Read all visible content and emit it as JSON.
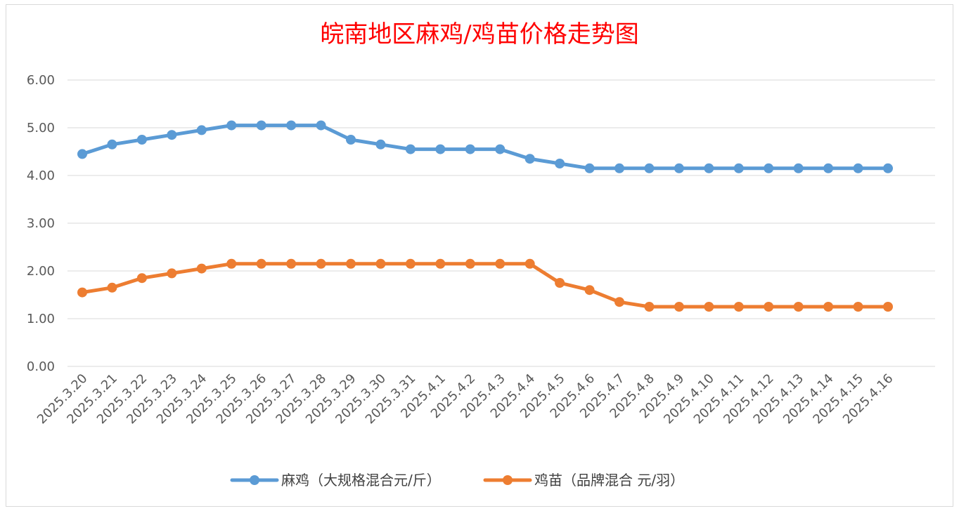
{
  "chart_data": {
    "type": "line",
    "title": "皖南地区麻鸡/鸡苗价格走势图",
    "categories": [
      "2025.3.20",
      "2025.3.21",
      "2025.3.22",
      "2025.3.23",
      "2025.3.24",
      "2025.3.25",
      "2025.3.26",
      "2025.3.27",
      "2025.3.28",
      "2025.3.29",
      "2025.3.30",
      "2025.3.31",
      "2025.4.1",
      "2025.4.2",
      "2025.4.3",
      "2025.4.4",
      "2025.4.5",
      "2025.4.6",
      "2025.4.7",
      "2025.4.8",
      "2025.4.9",
      "2025.4.10",
      "2025.4.11",
      "2025.4.12",
      "2025.4.13",
      "2025.4.14",
      "2025.4.15",
      "2025.4.16"
    ],
    "yticks": [
      "0.00",
      "1.00",
      "2.00",
      "3.00",
      "4.00",
      "5.00",
      "6.00"
    ],
    "ylim": [
      0,
      6
    ],
    "grid": true,
    "legend_position": "bottom",
    "series": [
      {
        "name": "麻鸡（大规格混合元/斤）",
        "color": "#5b9bd5",
        "values": [
          4.45,
          4.65,
          4.75,
          4.85,
          4.95,
          5.05,
          5.05,
          5.05,
          5.05,
          4.75,
          4.65,
          4.55,
          4.55,
          4.55,
          4.55,
          4.35,
          4.25,
          4.15,
          4.15,
          4.15,
          4.15,
          4.15,
          4.15,
          4.15,
          4.15,
          4.15,
          4.15,
          4.15
        ]
      },
      {
        "name": "鸡苗（品牌混合 元/羽）",
        "color": "#ed7d31",
        "values": [
          1.55,
          1.65,
          1.85,
          1.95,
          2.05,
          2.15,
          2.15,
          2.15,
          2.15,
          2.15,
          2.15,
          2.15,
          2.15,
          2.15,
          2.15,
          2.15,
          1.75,
          1.6,
          1.35,
          1.25,
          1.25,
          1.25,
          1.25,
          1.25,
          1.25,
          1.25,
          1.25,
          1.25
        ]
      }
    ]
  }
}
